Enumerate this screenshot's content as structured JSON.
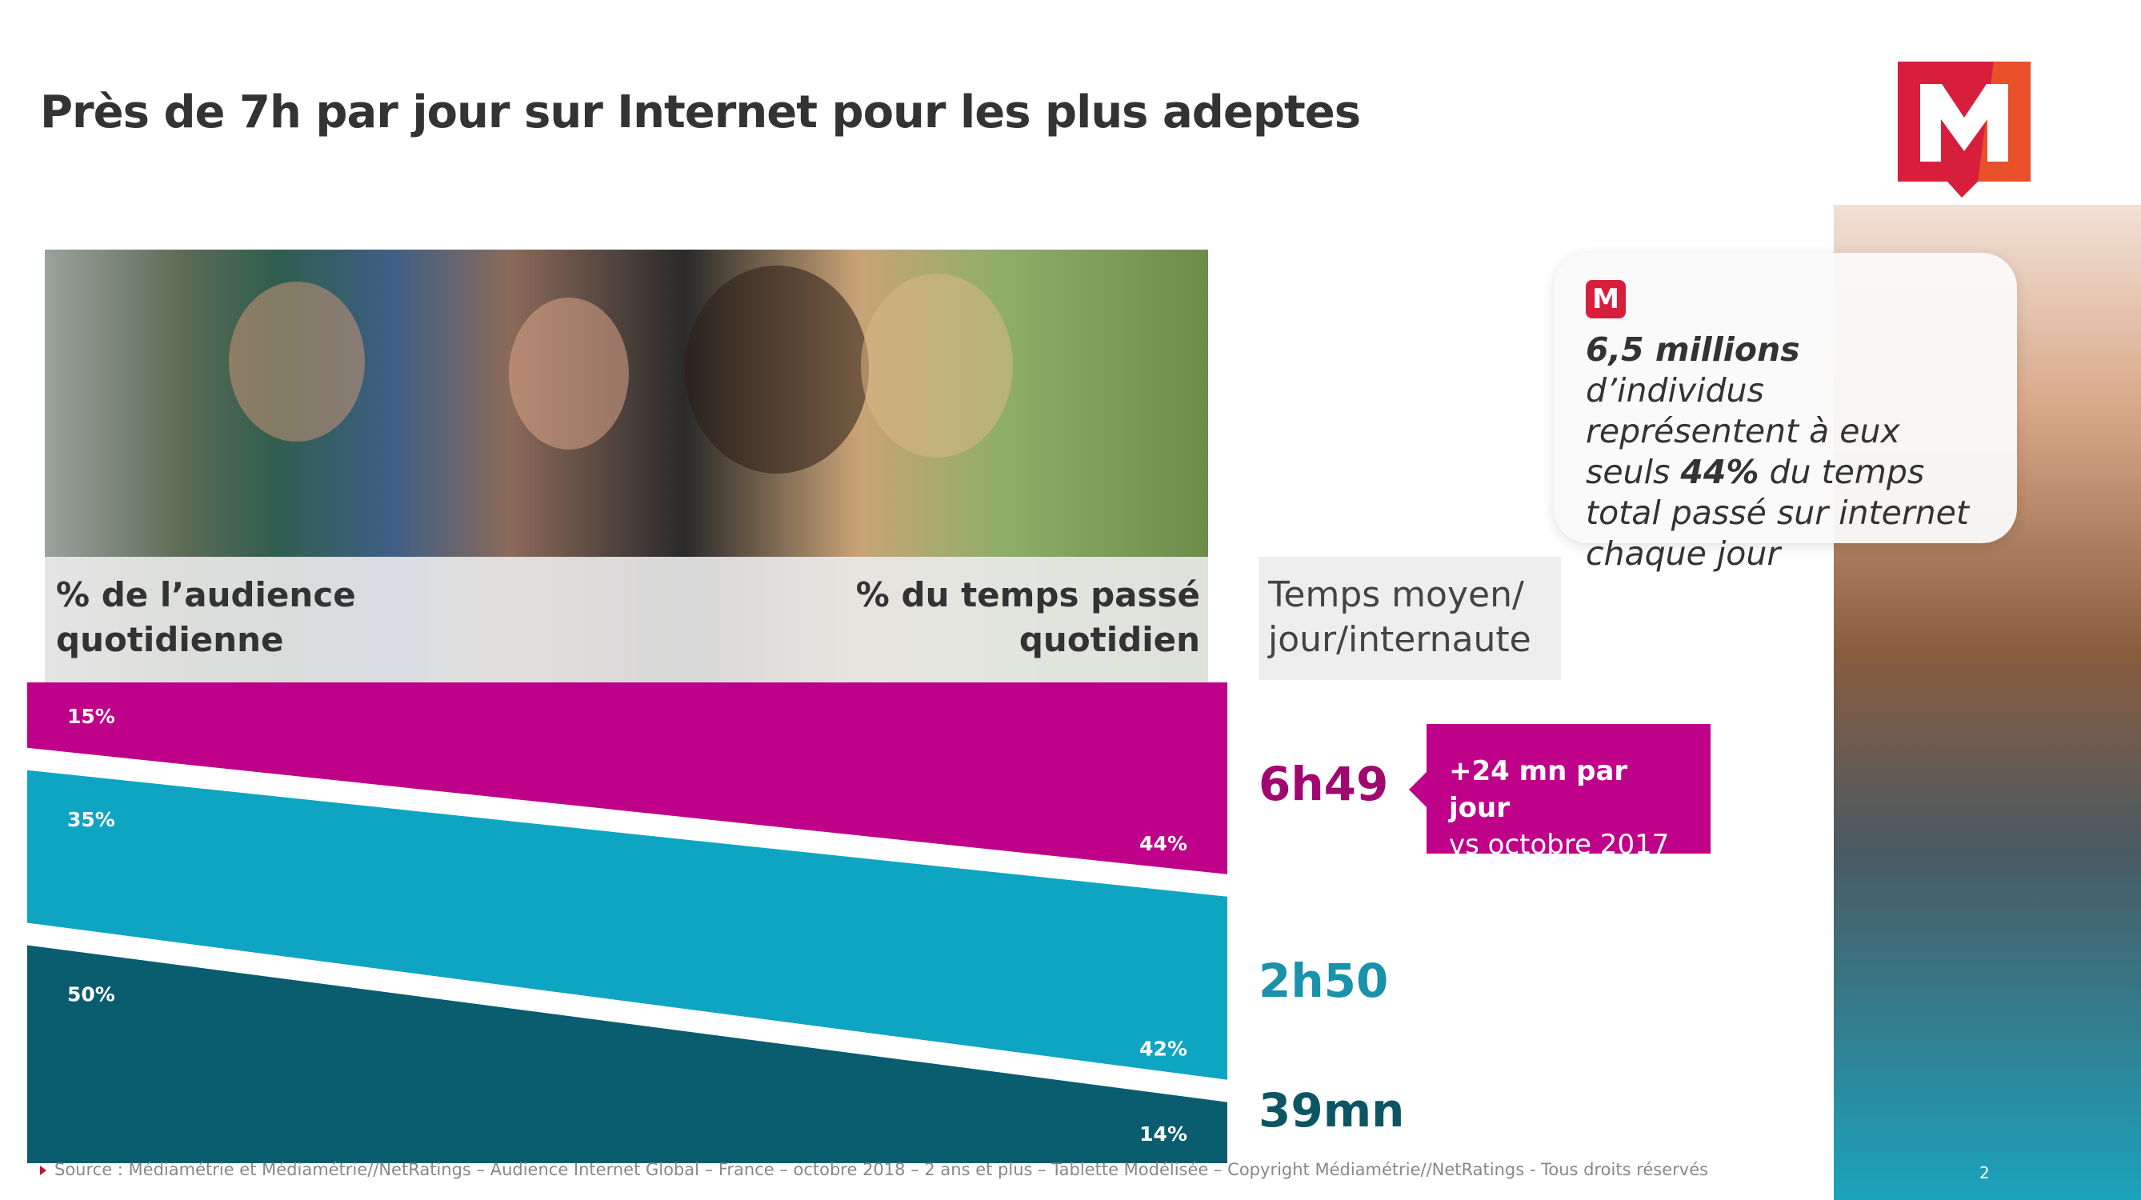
{
  "title": "Près de 7h par jour sur Internet pour les plus adeptes",
  "colors": {
    "magenta": "#bf0089",
    "cyan": "#0ea5c3",
    "teal": "#0a5d6e",
    "logo_red": "#d71f3c"
  },
  "headers": {
    "left": "% de l’audience quotidienne",
    "right": "% du temps passé quotidien",
    "temps": "Temps moyen/ jour/internaute"
  },
  "chart_data": {
    "type": "area",
    "series": [
      {
        "audience_pct": 15,
        "time_pct": 44,
        "audience_label": "15%",
        "time_label": "44%",
        "avg_time": "6h49",
        "color": "#bf0089"
      },
      {
        "audience_pct": 35,
        "time_pct": 42,
        "audience_label": "35%",
        "time_label": "42%",
        "avg_time": "2h50",
        "color": "#0ea5c3"
      },
      {
        "audience_pct": 50,
        "time_pct": 14,
        "audience_label": "50%",
        "time_label": "14%",
        "avg_time": "39mn",
        "color": "#0a5d6e"
      }
    ]
  },
  "callout": {
    "line1": "+24 mn par jour",
    "line2": "vs octobre 2017"
  },
  "quote": {
    "bold1": "6,5 millions",
    "text1": " d’individus représentent à eux seuls ",
    "bold2": "44%",
    "text2": " du temps total passé sur internet chaque jour",
    "logo": "M"
  },
  "source": "Source : Médiamétrie et Médiamétrie//NetRatings – Audience Internet Global – France – octobre 2018 – 2 ans et plus – Tablette Modélisée – Copyright Médiamétrie//NetRatings - Tous droits réservés",
  "page_number": "2",
  "logo_text": "M"
}
